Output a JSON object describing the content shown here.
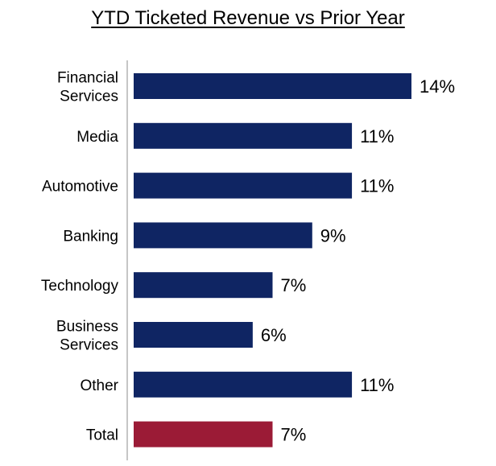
{
  "chart_data": {
    "type": "bar",
    "orientation": "horizontal",
    "title": "YTD Ticketed Revenue vs Prior Year",
    "categories": [
      "Financial Services",
      "Media",
      "Automotive",
      "Banking",
      "Technology",
      "Business Services",
      "Other",
      "Total"
    ],
    "category_lines": [
      [
        "Financial",
        "Services"
      ],
      [
        "Media"
      ],
      [
        "Automotive"
      ],
      [
        "Banking"
      ],
      [
        "Technology"
      ],
      [
        "Business",
        "Services"
      ],
      [
        "Other"
      ],
      [
        "Total"
      ]
    ],
    "values": [
      14,
      11,
      11,
      9,
      7,
      6,
      11,
      7
    ],
    "value_labels": [
      "14%",
      "11%",
      "11%",
      "9%",
      "7%",
      "6%",
      "11%",
      "7%"
    ],
    "bar_colors": [
      "#0f2563",
      "#0f2563",
      "#0f2563",
      "#0f2563",
      "#0f2563",
      "#0f2563",
      "#0f2563",
      "#9b1b36"
    ],
    "xlim": [
      0,
      14
    ],
    "xlabel": "",
    "ylabel": "",
    "grid": false,
    "legend": "none"
  }
}
